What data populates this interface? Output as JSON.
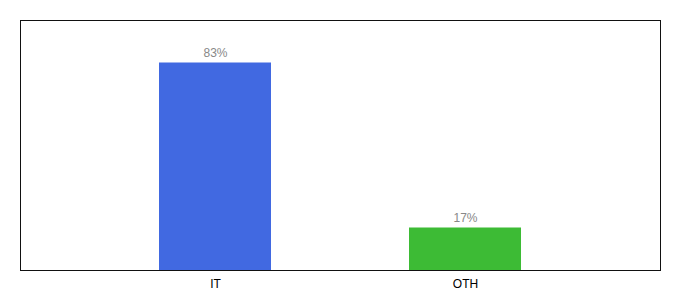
{
  "chart_data": {
    "type": "bar",
    "categories": [
      "IT",
      "OTH"
    ],
    "values": [
      83,
      17
    ],
    "colors": [
      "#4169e1",
      "#3dbb35"
    ],
    "ylim": [
      0,
      100
    ],
    "data_labels": true,
    "value_labels": [
      "83%",
      "17%"
    ],
    "tick_labels": "x",
    "grid": false
  }
}
